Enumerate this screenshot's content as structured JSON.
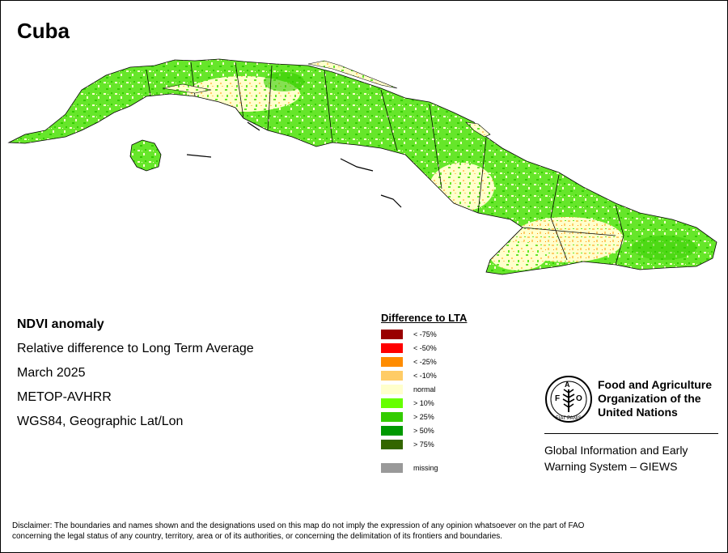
{
  "map": {
    "title": "Cuba",
    "info_lines": [
      "NDVI anomaly",
      "Relative difference to Long Term Average",
      "March 2025",
      "METOP-AVHRR",
      "WGS84, Geographic Lat/Lon"
    ]
  },
  "legend": {
    "title": "Difference to LTA",
    "items": [
      {
        "label": "< -75%",
        "color": "#990000"
      },
      {
        "label": "< -50%",
        "color": "#ff0000"
      },
      {
        "label": "< -25%",
        "color": "#ff8c00"
      },
      {
        "label": "< -10%",
        "color": "#ffcc66"
      },
      {
        "label": "normal",
        "color": "#ffffcc"
      },
      {
        "label": "> 10%",
        "color": "#66ff00"
      },
      {
        "label": "> 25%",
        "color": "#33cc00"
      },
      {
        "label": "> 50%",
        "color": "#009900"
      },
      {
        "label": "> 75%",
        "color": "#336600"
      }
    ],
    "missing": {
      "label": "missing",
      "color": "#999999"
    }
  },
  "organization": {
    "logo_letters": "FAO",
    "logo_motto": "FIAT PANIS",
    "name_lines": [
      "Food and Agriculture",
      "Organization of the",
      "United Nations"
    ],
    "program_lines": [
      "Global Information and Early",
      "Warning System – GIEWS"
    ]
  },
  "disclaimer": {
    "line1": "Disclaimer: The boundaries and names shown and the designations used on this map do not imply the expression of any opinion whatsoever on the part of FAO",
    "line2": "concerning the legal status of any country, territory, area or of its authorities, or concerning the delimitation of its frontiers and boundaries."
  }
}
